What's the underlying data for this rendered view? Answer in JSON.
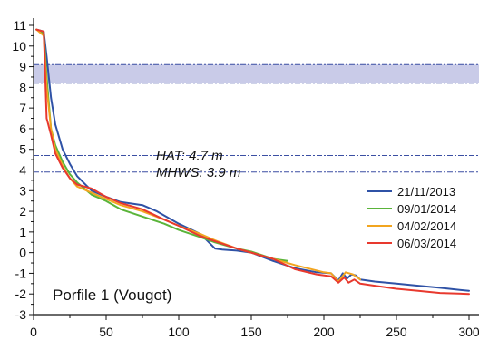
{
  "chart_data": {
    "type": "line",
    "title": "",
    "xlabel": "",
    "ylabel": "",
    "xlim": [
      0,
      300
    ],
    "ylim": [
      -3,
      11
    ],
    "x_ticks": [
      0,
      50,
      100,
      150,
      200,
      250,
      300
    ],
    "y_ticks": [
      11,
      10,
      9,
      8,
      7,
      6,
      5,
      4,
      3,
      2,
      1,
      0,
      -1,
      -2,
      -3
    ],
    "grid": false,
    "legend_position": "bottom-right",
    "annotation": "Porfile 1 (Vougot)",
    "band": {
      "y_min": 8.2,
      "y_max": 9.1,
      "color": "#c9cbe8"
    },
    "reference_lines": [
      {
        "label": "HAT: 4.7 m",
        "y": 4.7,
        "color": "#3b4fa3"
      },
      {
        "label": "MHWS: 3.9 m",
        "y": 3.9,
        "color": "#3b4fa3"
      }
    ],
    "series": [
      {
        "name": "21/11/2013",
        "color": "#2f52a6",
        "x": [
          2,
          7,
          9,
          12,
          15,
          20,
          25,
          30,
          40,
          50,
          60,
          75,
          85,
          100,
          115,
          125,
          130,
          140,
          150,
          165,
          180,
          195,
          205,
          210,
          213,
          216,
          219,
          222,
          225,
          235,
          250,
          265,
          280,
          300
        ],
        "y": [
          10.8,
          10.7,
          9.5,
          7.5,
          6.2,
          5.0,
          4.3,
          3.7,
          3.0,
          2.7,
          2.45,
          2.3,
          2.0,
          1.4,
          0.9,
          0.2,
          0.15,
          0.1,
          0.0,
          -0.4,
          -0.75,
          -0.95,
          -1.0,
          -1.35,
          -1.0,
          -1.25,
          -1.05,
          -1.1,
          -1.3,
          -1.4,
          -1.5,
          -1.6,
          -1.7,
          -1.85
        ]
      },
      {
        "name": "09/01/2014",
        "color": "#5ab43a",
        "x": [
          2,
          7,
          9,
          12,
          15,
          20,
          25,
          30,
          40,
          50,
          60,
          75,
          90,
          100,
          115,
          125,
          140,
          150,
          165,
          175
        ],
        "y": [
          10.8,
          10.6,
          8.5,
          6.0,
          5.2,
          4.4,
          3.8,
          3.4,
          2.8,
          2.5,
          2.1,
          1.75,
          1.4,
          1.1,
          0.75,
          0.5,
          0.2,
          0.05,
          -0.3,
          -0.4
        ]
      },
      {
        "name": "04/02/2014",
        "color": "#f2a51f",
        "x": [
          2,
          7,
          9,
          12,
          15,
          20,
          25,
          30,
          40,
          50,
          60,
          75,
          90,
          100,
          115,
          125,
          140,
          150,
          165,
          180,
          200,
          205,
          210,
          215,
          220,
          225
        ],
        "y": [
          10.8,
          10.5,
          8.0,
          6.0,
          5.0,
          4.2,
          3.6,
          3.2,
          2.9,
          2.6,
          2.3,
          2.0,
          1.6,
          1.3,
          0.9,
          0.6,
          0.2,
          0.0,
          -0.3,
          -0.6,
          -0.95,
          -1.0,
          -1.4,
          -0.95,
          -1.05,
          -1.3
        ]
      },
      {
        "name": "06/03/2014",
        "color": "#e8392e",
        "x": [
          2,
          7,
          9,
          12,
          15,
          20,
          25,
          30,
          40,
          50,
          60,
          75,
          90,
          100,
          115,
          125,
          140,
          150,
          165,
          180,
          195,
          205,
          210,
          214,
          217,
          221,
          225,
          235,
          250,
          265,
          280,
          300
        ],
        "y": [
          10.8,
          10.7,
          6.5,
          5.7,
          4.8,
          4.1,
          3.6,
          3.3,
          3.1,
          2.7,
          2.4,
          2.1,
          1.6,
          1.3,
          0.8,
          0.55,
          0.2,
          0.0,
          -0.3,
          -0.8,
          -1.05,
          -1.15,
          -1.45,
          -1.2,
          -1.45,
          -1.3,
          -1.5,
          -1.6,
          -1.75,
          -1.85,
          -1.95,
          -2.0
        ]
      }
    ]
  }
}
